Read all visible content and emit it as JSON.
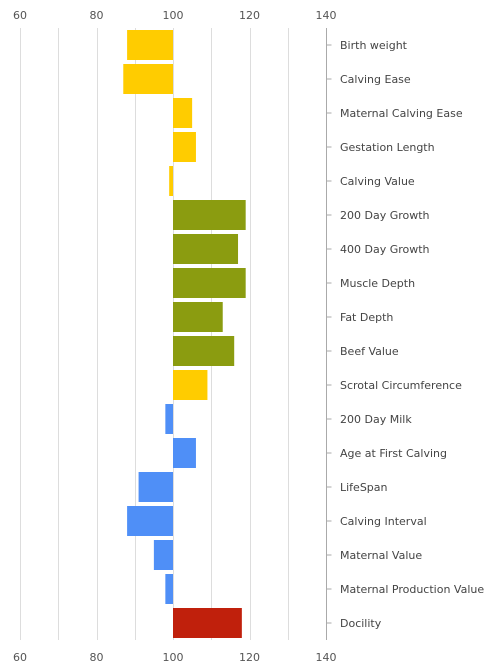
{
  "chart_data": {
    "type": "bar",
    "orientation": "horizontal",
    "baseline": 100,
    "xlim": [
      60,
      140
    ],
    "x_ticks": [
      "60",
      "80",
      "100",
      "120",
      "140"
    ],
    "grid": true,
    "axis_position": "right",
    "categories": [
      "Birth weight",
      "Calving Ease",
      "Maternal Calving Ease",
      "Gestation Length",
      "Calving Value",
      "200 Day Growth",
      "400 Day Growth",
      "Muscle Depth",
      "Fat Depth",
      "Beef Value",
      "Scrotal Circumference",
      "200 Day Milk",
      "Age at First Calving",
      "LifeSpan",
      "Calving Interval",
      "Maternal Value",
      "Maternal Production Value",
      "Docility"
    ],
    "values": [
      88,
      87,
      105,
      106,
      99,
      119,
      117,
      119,
      113,
      116,
      109,
      98,
      106,
      91,
      88,
      95,
      98,
      118
    ],
    "colors": [
      "#ffcc00",
      "#ffcc00",
      "#ffcc00",
      "#ffcc00",
      "#ffcc00",
      "#8b9c10",
      "#8b9c10",
      "#8b9c10",
      "#8b9c10",
      "#8b9c10",
      "#ffcc00",
      "#4f8ff7",
      "#4f8ff7",
      "#4f8ff7",
      "#4f8ff7",
      "#4f8ff7",
      "#4f8ff7",
      "#c0200c"
    ],
    "gridline_color": "#dddddd",
    "axis_color": "#aaaaaa"
  }
}
